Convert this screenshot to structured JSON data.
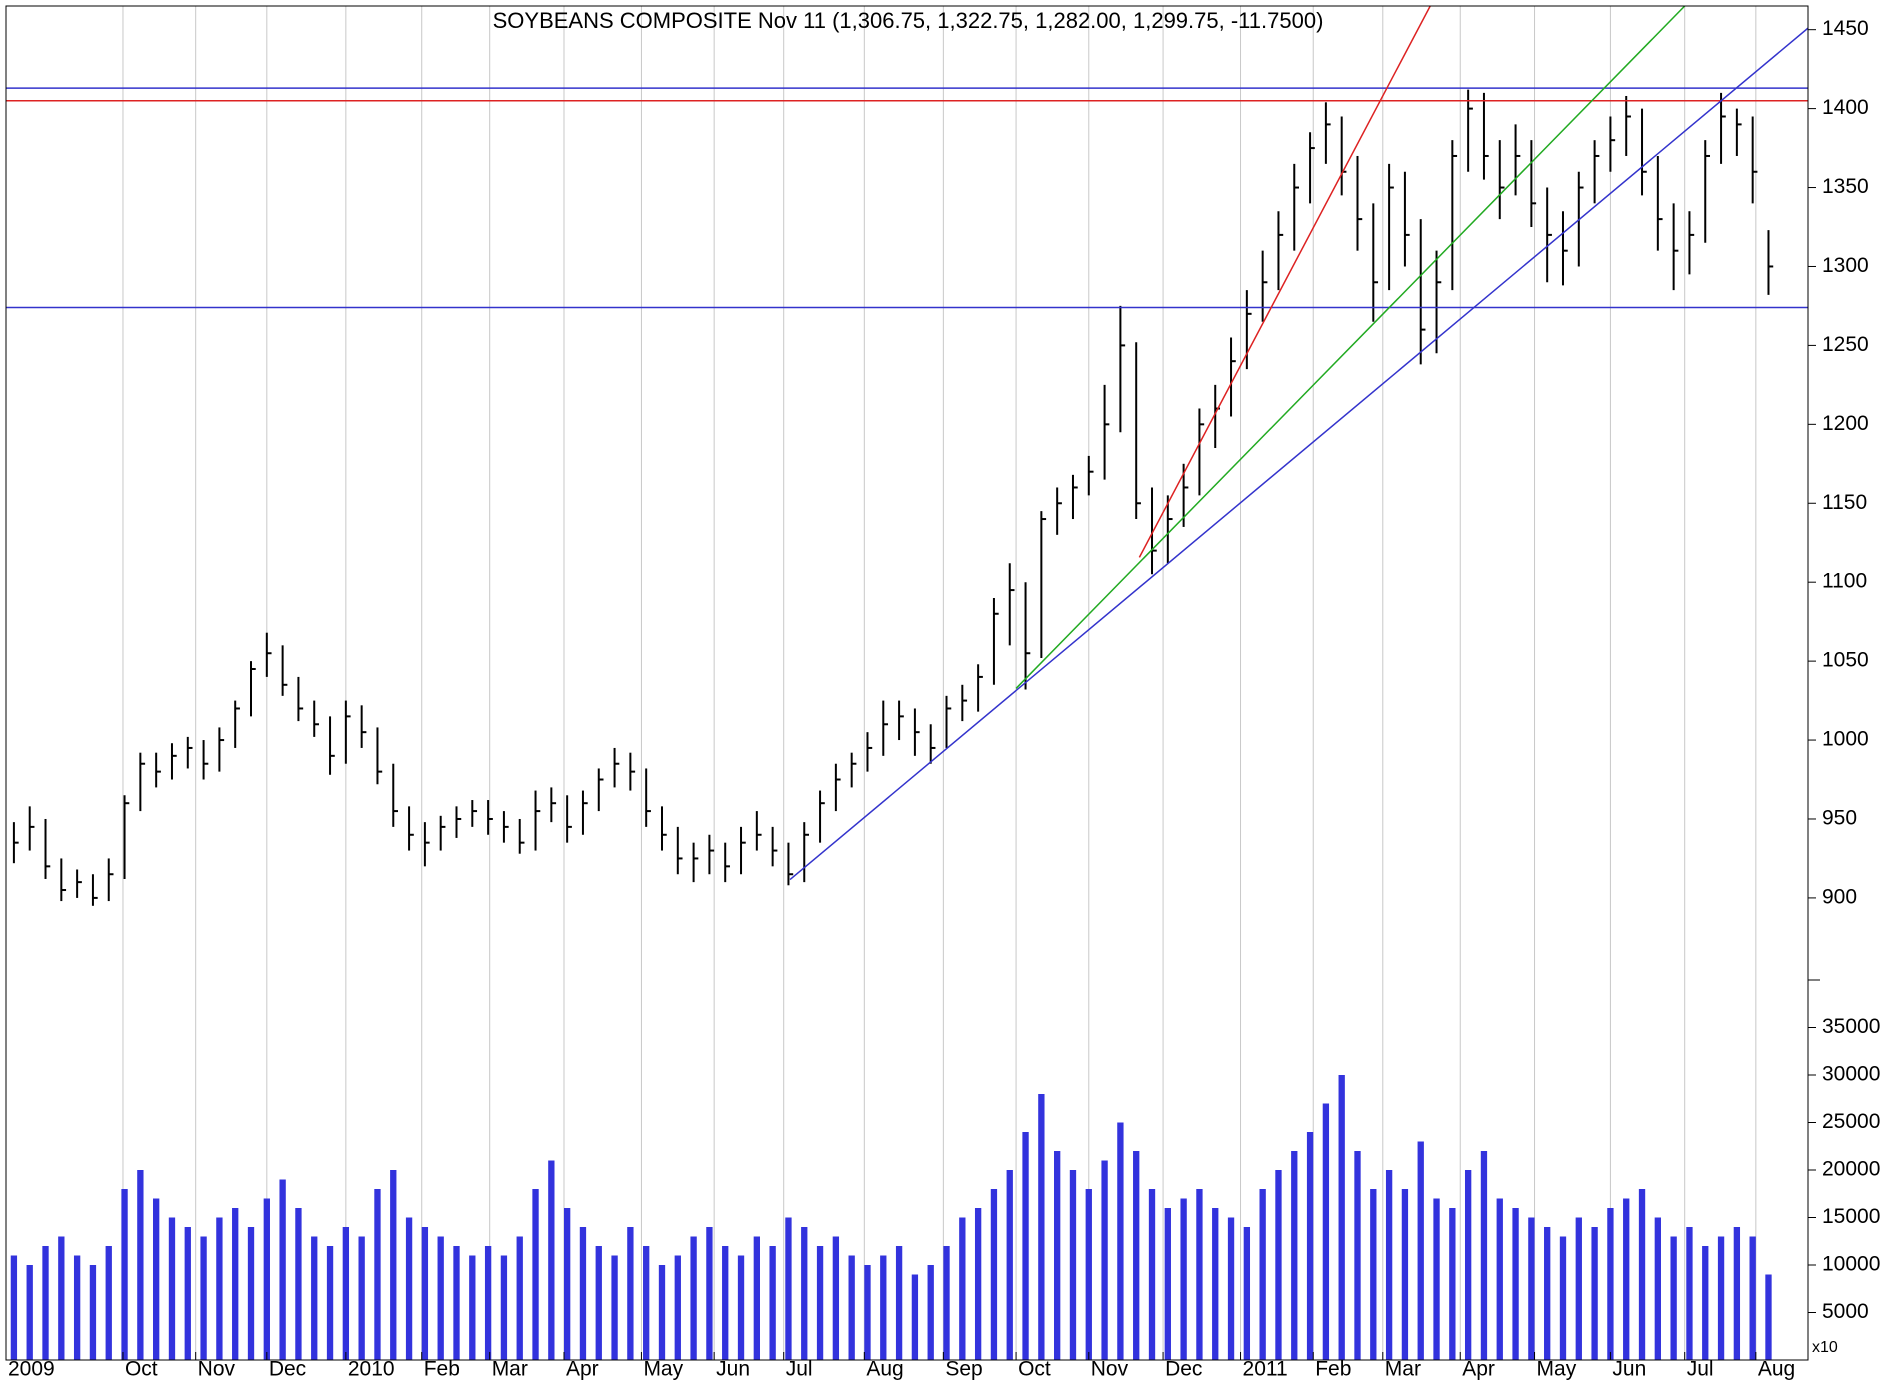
{
  "chart_data": {
    "type": "ohlc",
    "title": "SOYBEANS COMPOSITE Nov 11 (1,306.75, 1,322.75, 1,282.00, 1,299.75, -11.7500)",
    "xlim": [
      0,
      114
    ],
    "xticks": [
      {
        "value": 0,
        "label": "2009"
      },
      {
        "value": 7.4,
        "label": "Oct"
      },
      {
        "value": 12.0,
        "label": "Nov"
      },
      {
        "value": 16.5,
        "label": "Dec"
      },
      {
        "value": 21.5,
        "label": "2010"
      },
      {
        "value": 26.3,
        "label": "Feb"
      },
      {
        "value": 30.6,
        "label": "Mar"
      },
      {
        "value": 35.3,
        "label": "Apr"
      },
      {
        "value": 40.2,
        "label": "May"
      },
      {
        "value": 44.8,
        "label": "Jun"
      },
      {
        "value": 49.2,
        "label": "Jul"
      },
      {
        "value": 54.3,
        "label": "Aug"
      },
      {
        "value": 59.3,
        "label": "Sep"
      },
      {
        "value": 63.9,
        "label": "Oct"
      },
      {
        "value": 68.5,
        "label": "Nov"
      },
      {
        "value": 73.2,
        "label": "Dec"
      },
      {
        "value": 78.1,
        "label": "2011"
      },
      {
        "value": 82.7,
        "label": "Feb"
      },
      {
        "value": 87.1,
        "label": "Mar"
      },
      {
        "value": 92.0,
        "label": "Apr"
      },
      {
        "value": 96.7,
        "label": "May"
      },
      {
        "value": 101.5,
        "label": "Jun"
      },
      {
        "value": 106.2,
        "label": "Jul"
      },
      {
        "value": 110.7,
        "label": "Aug"
      }
    ],
    "grid": true,
    "price": {
      "color": "#000000",
      "ylim": [
        848,
        1465
      ],
      "yticks": [
        900,
        950,
        1000,
        1050,
        1100,
        1150,
        1200,
        1250,
        1300,
        1350,
        1400,
        1450
      ],
      "high": [
        948,
        958,
        950,
        925,
        918,
        915,
        925,
        965,
        992,
        992,
        998,
        1002,
        1000,
        1008,
        1025,
        1050,
        1068,
        1060,
        1040,
        1025,
        1015,
        1025,
        1022,
        1008,
        985,
        958,
        948,
        952,
        958,
        962,
        962,
        955,
        950,
        968,
        970,
        965,
        968,
        982,
        995,
        992,
        982,
        958,
        945,
        935,
        940,
        935,
        945,
        955,
        945,
        935,
        948,
        968,
        985,
        992,
        1005,
        1025,
        1025,
        1020,
        1010,
        1028,
        1035,
        1048,
        1090,
        1112,
        1100,
        1145,
        1160,
        1168,
        1180,
        1225,
        1275,
        1252,
        1160,
        1155,
        1175,
        1210,
        1225,
        1255,
        1285,
        1310,
        1335,
        1365,
        1385,
        1404,
        1395,
        1370,
        1340,
        1365,
        1360,
        1330,
        1310,
        1380,
        1412,
        1410,
        1380,
        1390,
        1380,
        1350,
        1335,
        1360,
        1380,
        1395,
        1408,
        1400,
        1370,
        1340,
        1335,
        1380,
        1410,
        1400,
        1395,
        1323
      ],
      "low": [
        922,
        930,
        912,
        898,
        900,
        895,
        898,
        912,
        955,
        970,
        975,
        982,
        975,
        980,
        995,
        1015,
        1040,
        1028,
        1012,
        1002,
        978,
        985,
        995,
        972,
        945,
        930,
        920,
        930,
        938,
        945,
        940,
        935,
        928,
        930,
        948,
        935,
        940,
        955,
        970,
        968,
        945,
        930,
        915,
        910,
        915,
        910,
        915,
        930,
        920,
        908,
        910,
        935,
        955,
        970,
        980,
        990,
        1000,
        990,
        985,
        995,
        1012,
        1018,
        1035,
        1060,
        1032,
        1052,
        1130,
        1140,
        1155,
        1165,
        1195,
        1140,
        1105,
        1112,
        1135,
        1155,
        1185,
        1205,
        1235,
        1265,
        1285,
        1310,
        1340,
        1365,
        1345,
        1310,
        1265,
        1285,
        1300,
        1238,
        1245,
        1285,
        1360,
        1355,
        1330,
        1345,
        1325,
        1290,
        1288,
        1300,
        1340,
        1360,
        1370,
        1345,
        1310,
        1285,
        1295,
        1315,
        1365,
        1370,
        1340,
        1282
      ],
      "close": [
        935,
        945,
        920,
        905,
        910,
        900,
        915,
        960,
        985,
        980,
        990,
        995,
        985,
        1000,
        1020,
        1045,
        1055,
        1035,
        1020,
        1010,
        990,
        1015,
        1005,
        980,
        955,
        940,
        935,
        945,
        950,
        955,
        950,
        945,
        935,
        955,
        960,
        945,
        960,
        975,
        985,
        980,
        955,
        940,
        925,
        925,
        930,
        920,
        935,
        940,
        930,
        915,
        940,
        960,
        975,
        985,
        995,
        1010,
        1015,
        1005,
        995,
        1020,
        1025,
        1040,
        1080,
        1095,
        1055,
        1140,
        1150,
        1160,
        1170,
        1200,
        1250,
        1150,
        1120,
        1140,
        1160,
        1200,
        1210,
        1240,
        1270,
        1290,
        1320,
        1350,
        1375,
        1390,
        1360,
        1330,
        1290,
        1350,
        1320,
        1260,
        1290,
        1370,
        1400,
        1370,
        1350,
        1370,
        1340,
        1320,
        1310,
        1350,
        1370,
        1380,
        1395,
        1360,
        1330,
        1310,
        1320,
        1370,
        1395,
        1390,
        1360,
        1300
      ]
    },
    "volume": {
      "color": "#3333dd",
      "ylim": [
        0,
        40000
      ],
      "yticks": [
        5000,
        10000,
        15000,
        20000,
        25000,
        30000,
        35000
      ],
      "unit_label": "x10",
      "values": [
        11000,
        10000,
        12000,
        13000,
        11000,
        10000,
        12000,
        18000,
        20000,
        17000,
        15000,
        14000,
        13000,
        15000,
        16000,
        14000,
        17000,
        19000,
        16000,
        13000,
        12000,
        14000,
        13000,
        18000,
        20000,
        15000,
        14000,
        13000,
        12000,
        11000,
        12000,
        11000,
        13000,
        18000,
        21000,
        16000,
        14000,
        12000,
        11000,
        14000,
        12000,
        10000,
        11000,
        13000,
        14000,
        12000,
        11000,
        13000,
        12000,
        15000,
        14000,
        12000,
        13000,
        11000,
        10000,
        11000,
        12000,
        9000,
        10000,
        12000,
        15000,
        16000,
        18000,
        20000,
        24000,
        28000,
        22000,
        20000,
        18000,
        21000,
        25000,
        22000,
        18000,
        16000,
        17000,
        18000,
        16000,
        15000,
        14000,
        18000,
        20000,
        22000,
        24000,
        27000,
        30000,
        22000,
        18000,
        20000,
        18000,
        23000,
        17000,
        16000,
        20000,
        22000,
        17000,
        16000,
        15000,
        14000,
        13000,
        15000,
        14000,
        16000,
        17000,
        18000,
        15000,
        13000,
        14000,
        12000,
        13000,
        14000,
        13000,
        9000
      ]
    },
    "lines": [
      {
        "color": "#3333cc",
        "x": [
          0,
          114
        ],
        "y": [
          1413,
          1413
        ]
      },
      {
        "color": "#dd2222",
        "x": [
          0,
          114
        ],
        "y": [
          1405,
          1405
        ]
      },
      {
        "color": "#3333cc",
        "x": [
          0,
          114
        ],
        "y": [
          1274,
          1274
        ]
      },
      {
        "color": "#3333cc",
        "x": [
          49.6,
          114
        ],
        "y": [
          911.6,
          1451
        ]
      },
      {
        "color": "#22aa22",
        "x": [
          63.9,
          106.2
        ],
        "y": [
          1032.7,
          1465
        ]
      },
      {
        "color": "#dd2222",
        "x": [
          71.7,
          90.1
        ],
        "y": [
          1115.7,
          1465
        ]
      }
    ]
  }
}
